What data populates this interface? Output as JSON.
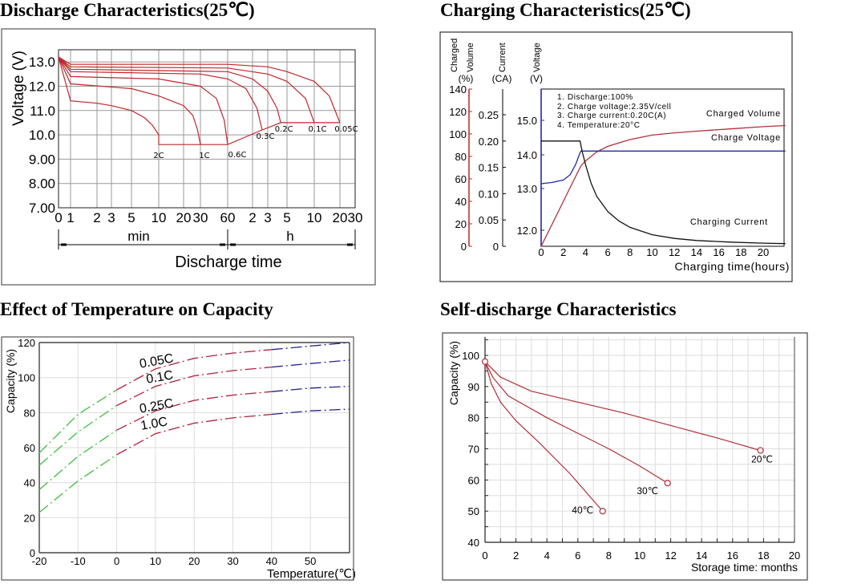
{
  "chart_data": [
    {
      "type": "line",
      "title": "Discharge Characteristics(25℃)",
      "ylabel": "Voltage (V)",
      "xlabel": "Discharge time",
      "x_unit_groups": [
        "min",
        "h"
      ],
      "x_unit": "min",
      "x_ticks_min": [
        "0",
        "1",
        "2",
        "3",
        "5",
        "10",
        "20",
        "30",
        "60"
      ],
      "x_ticks_h": [
        "2",
        "3",
        "5",
        "10",
        "20",
        "30"
      ],
      "y_ticks": [
        "13.0",
        "12.0",
        "11.0",
        "10.0",
        "9.00",
        "8.00",
        "7.00"
      ],
      "ylim": [
        7,
        13.5
      ],
      "grid": true,
      "color": "#c0272d",
      "series": [
        {
          "name": "2C",
          "points": [
            [
              0,
              13.2
            ],
            [
              1,
              11.4
            ],
            [
              2,
              11.3
            ],
            [
              3,
              11.2
            ],
            [
              5,
              11.0
            ],
            [
              7,
              10.7
            ],
            [
              8.5,
              10.4
            ],
            [
              10,
              10.0
            ],
            [
              10,
              9.6
            ]
          ]
        },
        {
          "name": "1C",
          "points": [
            [
              0,
              13.2
            ],
            [
              1,
              12.1
            ],
            [
              5,
              11.9
            ],
            [
              10,
              11.6
            ],
            [
              20,
              11.2
            ],
            [
              25,
              10.8
            ],
            [
              28,
              10.2
            ],
            [
              30,
              9.6
            ]
          ]
        },
        {
          "name": "0.6C",
          "points": [
            [
              0,
              13.2
            ],
            [
              1,
              12.4
            ],
            [
              10,
              12.3
            ],
            [
              30,
              12.0
            ],
            [
              45,
              11.5
            ],
            [
              55,
              10.6
            ],
            [
              60,
              9.6
            ]
          ]
        },
        {
          "name": "0.3C",
          "points": [
            [
              0,
              13.2
            ],
            [
              1,
              12.6
            ],
            [
              30,
              12.5
            ],
            [
              60,
              12.3
            ],
            [
              100,
              11.9
            ],
            [
              135,
              11.1
            ],
            [
              155,
              10.2
            ]
          ]
        },
        {
          "name": "0.2C",
          "points": [
            [
              0,
              13.2
            ],
            [
              1,
              12.7
            ],
            [
              60,
              12.6
            ],
            [
              120,
              12.3
            ],
            [
              180,
              11.8
            ],
            [
              230,
              11.1
            ],
            [
              254,
              10.5
            ]
          ]
        },
        {
          "name": "0.1C",
          "points": [
            [
              0,
              13.2
            ],
            [
              1,
              12.8
            ],
            [
              60,
              12.75
            ],
            [
              180,
              12.5
            ],
            [
              300,
              12.2
            ],
            [
              480,
              11.5
            ],
            [
              600,
              10.5
            ]
          ]
        },
        {
          "name": "0.05C",
          "points": [
            [
              0,
              13.2
            ],
            [
              1,
              12.9
            ],
            [
              60,
              12.9
            ],
            [
              180,
              12.8
            ],
            [
              300,
              12.6
            ],
            [
              600,
              12.2
            ],
            [
              900,
              11.6
            ],
            [
              1200,
              10.5
            ]
          ]
        }
      ],
      "cutoff_line": [
        [
          10,
          9.6
        ],
        [
          60,
          9.6
        ],
        [
          155,
          10.2
        ],
        [
          254,
          10.5
        ],
        [
          1200,
          10.5
        ]
      ]
    },
    {
      "type": "line",
      "title": "Charging Characteristics(25℃)",
      "xlabel": "Charging time(hours)",
      "x_ticks": [
        "0",
        "2",
        "4",
        "6",
        "8",
        "10",
        "12",
        "14",
        "16",
        "18",
        "20"
      ],
      "xlim": [
        0,
        22
      ],
      "axes": {
        "charged": {
          "label_1": "Charged",
          "label_2": "Volume",
          "unit": "(%)",
          "ticks": [
            "140",
            "120",
            "100",
            "80",
            "60",
            "40",
            "20",
            "0"
          ],
          "range": [
            0,
            140
          ],
          "color": "#c0272d"
        },
        "current": {
          "label": "Current",
          "unit": "(CA)",
          "ticks": [
            "0.25",
            "0.20",
            "0.15",
            "0.10",
            "0.05",
            "0"
          ],
          "range": [
            0,
            0.3
          ],
          "color": "#000000"
        },
        "voltage": {
          "label": "Voltage",
          "unit": "(V)",
          "ticks": [
            "15.0",
            "14.0",
            "13.0",
            "12.0"
          ],
          "color": "#1f2aa8"
        }
      },
      "notes": [
        "1. Discharge:100%",
        "2. Charge voltage:2.35V/cell",
        "3. Charge current:0.20C(A)",
        "4. Temperature:20°C"
      ],
      "series": [
        {
          "name": "Charged Volume",
          "axis": "charged",
          "color": "#b0303a",
          "points": [
            [
              0,
              0
            ],
            [
              1,
              20
            ],
            [
              2,
              40
            ],
            [
              3,
              60
            ],
            [
              3.6,
              72
            ],
            [
              4,
              76
            ],
            [
              5,
              84
            ],
            [
              6,
              89
            ],
            [
              8,
              95
            ],
            [
              10,
              99
            ],
            [
              12,
              101
            ],
            [
              14,
              102.5
            ],
            [
              17,
              104.5
            ],
            [
              20,
              106.5
            ],
            [
              22,
              107.5
            ]
          ]
        },
        {
          "name": "Charge Voltage",
          "axis": "voltage",
          "color": "#1f2aa8",
          "points": [
            [
              0,
              13.14
            ],
            [
              1,
              13.18
            ],
            [
              2,
              13.25
            ],
            [
              2.6,
              13.4
            ],
            [
              3.1,
              13.7
            ],
            [
              3.5,
              14.05
            ],
            [
              3.6,
              14.1
            ],
            [
              22,
              14.1
            ]
          ]
        },
        {
          "name": "Charging Current",
          "axis": "current",
          "color": "#111111",
          "points": [
            [
              0,
              0.2
            ],
            [
              3.5,
              0.2
            ],
            [
              3.7,
              0.18
            ],
            [
              4,
              0.155
            ],
            [
              4.5,
              0.12
            ],
            [
              5,
              0.095
            ],
            [
              6,
              0.066
            ],
            [
              7,
              0.048
            ],
            [
              8,
              0.036
            ],
            [
              10,
              0.022
            ],
            [
              12,
              0.015
            ],
            [
              14,
              0.011
            ],
            [
              17,
              0.008
            ],
            [
              20,
              0.006
            ],
            [
              22,
              0.005
            ]
          ]
        }
      ]
    },
    {
      "type": "line",
      "title": "Effect of Temperature on Capacity",
      "ylabel": "Capacity (%)",
      "xlabel": "Temperature(℃)",
      "x_ticks": [
        "-20",
        "-10",
        "0",
        "10",
        "20",
        "30",
        "40",
        "50"
      ],
      "y_ticks": [
        "0",
        "20",
        "40",
        "60",
        "80",
        "100",
        "120"
      ],
      "xlim": [
        -20,
        60
      ],
      "ylim": [
        0,
        120
      ],
      "grid": true,
      "segment_colors": {
        "cold": "#3fbf3f",
        "normal": "#b0203a",
        "hot": "#22228f"
      },
      "series": [
        {
          "name": "0.05C",
          "x": [
            -20,
            -10,
            0,
            10,
            20,
            30,
            40,
            50,
            60
          ],
          "y": [
            57,
            79,
            93,
            105,
            111,
            114,
            116,
            118,
            120
          ]
        },
        {
          "name": "0.1C",
          "x": [
            -20,
            -10,
            0,
            10,
            20,
            30,
            40,
            50,
            60
          ],
          "y": [
            50,
            69,
            84,
            95,
            101,
            104,
            106,
            108,
            110
          ]
        },
        {
          "name": "0.25C",
          "x": [
            -20,
            -10,
            0,
            10,
            20,
            30,
            40,
            50,
            60
          ],
          "y": [
            36,
            55,
            70,
            81,
            87,
            90,
            92,
            94,
            95
          ]
        },
        {
          "name": "1.0C",
          "x": [
            -20,
            -10,
            0,
            10,
            20,
            30,
            40,
            50,
            60
          ],
          "y": [
            23,
            41,
            56,
            68,
            74,
            77,
            79,
            81,
            82
          ]
        }
      ]
    },
    {
      "type": "line",
      "title": "Self-discharge Characteristics",
      "ylabel": "Capacity (%)",
      "xlabel": "Storage time: months",
      "x_ticks": [
        "0",
        "2",
        "4",
        "6",
        "8",
        "10",
        "12",
        "14",
        "16",
        "18",
        "20"
      ],
      "y_ticks": [
        "100",
        "90",
        "80",
        "70",
        "60",
        "50",
        "40"
      ],
      "xlim": [
        0,
        20
      ],
      "ylim": [
        40,
        106
      ],
      "grid": true,
      "color": "#b0303a",
      "series": [
        {
          "name": "20℃",
          "points": [
            [
              0,
              98
            ],
            [
              1,
              93
            ],
            [
              3,
              88.5
            ],
            [
              6,
              85
            ],
            [
              9,
              81.5
            ],
            [
              12,
              77.5
            ],
            [
              15,
              73.5
            ],
            [
              17.8,
              69.5
            ]
          ]
        },
        {
          "name": "30℃",
          "points": [
            [
              0,
              98
            ],
            [
              0.5,
              93
            ],
            [
              1.5,
              87
            ],
            [
              4,
              80
            ],
            [
              6,
              75
            ],
            [
              8,
              70
            ],
            [
              10,
              64.5
            ],
            [
              11.8,
              59
            ]
          ]
        },
        {
          "name": "40℃",
          "points": [
            [
              0,
              98
            ],
            [
              0.4,
              91
            ],
            [
              1,
              85
            ],
            [
              2,
              79
            ],
            [
              3.5,
              72
            ],
            [
              5.5,
              62
            ],
            [
              7.6,
              50
            ]
          ]
        }
      ]
    }
  ]
}
